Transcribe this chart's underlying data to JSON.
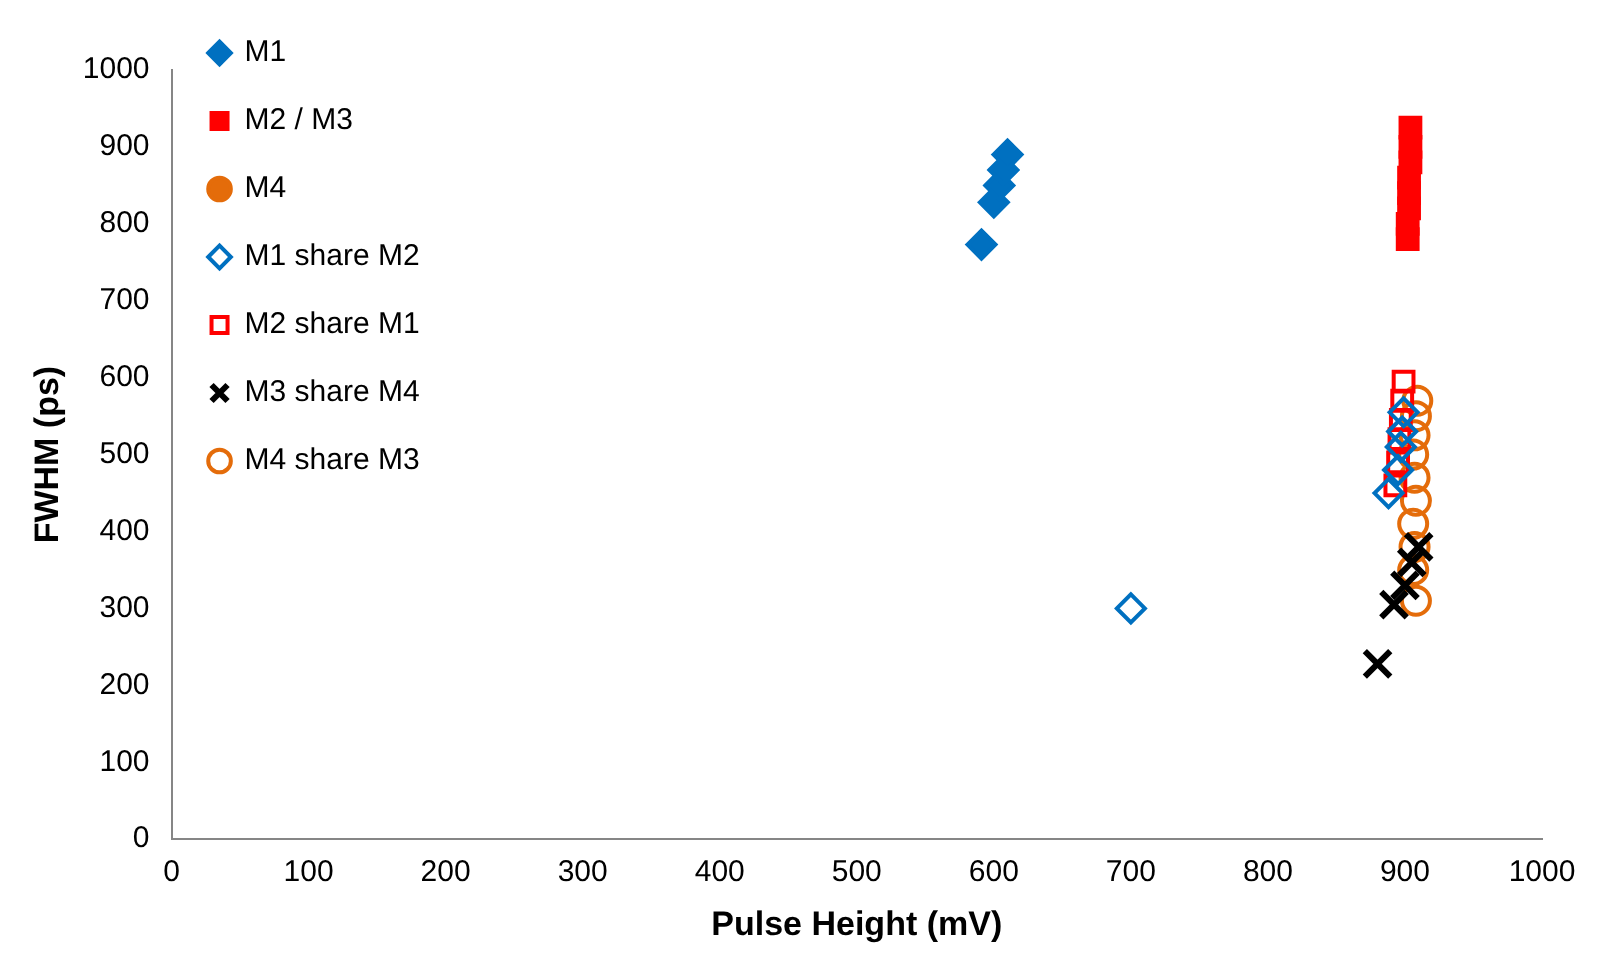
{
  "chart_data": {
    "type": "scatter",
    "xlabel": "Pulse Height (mV)",
    "ylabel": "FWHM (ps)",
    "xlim": [
      0,
      1000
    ],
    "ylim": [
      0,
      1000
    ],
    "xticks": [
      0,
      100,
      200,
      300,
      400,
      500,
      600,
      700,
      800,
      900,
      1000
    ],
    "yticks": [
      0,
      100,
      200,
      300,
      400,
      500,
      600,
      700,
      800,
      900,
      1000
    ],
    "legend": "top left",
    "series": [
      {
        "name": "M1",
        "color": "#0070c0",
        "marker": "diamond",
        "x": [
          591,
          600,
          604,
          607,
          610
        ],
        "values": [
          773,
          828,
          850,
          870,
          890
        ]
      },
      {
        "name": "M2 / M3",
        "color": "#ff0000",
        "marker": "square",
        "x": [
          902,
          902,
          903,
          903,
          903,
          904,
          904,
          904
        ],
        "values": [
          780,
          800,
          820,
          840,
          860,
          880,
          900,
          925
        ]
      },
      {
        "name": "M4",
        "color": "#e46c0a",
        "marker": "circle"
      },
      {
        "name": "M1 share M2",
        "color": "#0070c0",
        "marker": "diamond",
        "x": [
          700,
          888,
          895,
          897,
          898,
          899
        ],
        "values": [
          300,
          450,
          480,
          510,
          530,
          555
        ]
      },
      {
        "name": "M2 share M1",
        "color": "#ff0000",
        "marker": "square",
        "x": [
          893,
          895,
          896,
          897,
          898,
          899
        ],
        "values": [
          460,
          490,
          520,
          545,
          570,
          595
        ]
      },
      {
        "name": "M3 share M4",
        "color": "#000000",
        "marker": "cross",
        "x": [
          880,
          892,
          900,
          905,
          910
        ],
        "values": [
          228,
          305,
          330,
          360,
          380
        ]
      },
      {
        "name": "M4 share M3",
        "color": "#e46c0a",
        "marker": "circle",
        "x": [
          908,
          906,
          907,
          906,
          908,
          907,
          906,
          907,
          908,
          909
        ],
        "values": [
          310,
          350,
          380,
          410,
          440,
          470,
          500,
          525,
          550,
          570
        ]
      }
    ]
  }
}
